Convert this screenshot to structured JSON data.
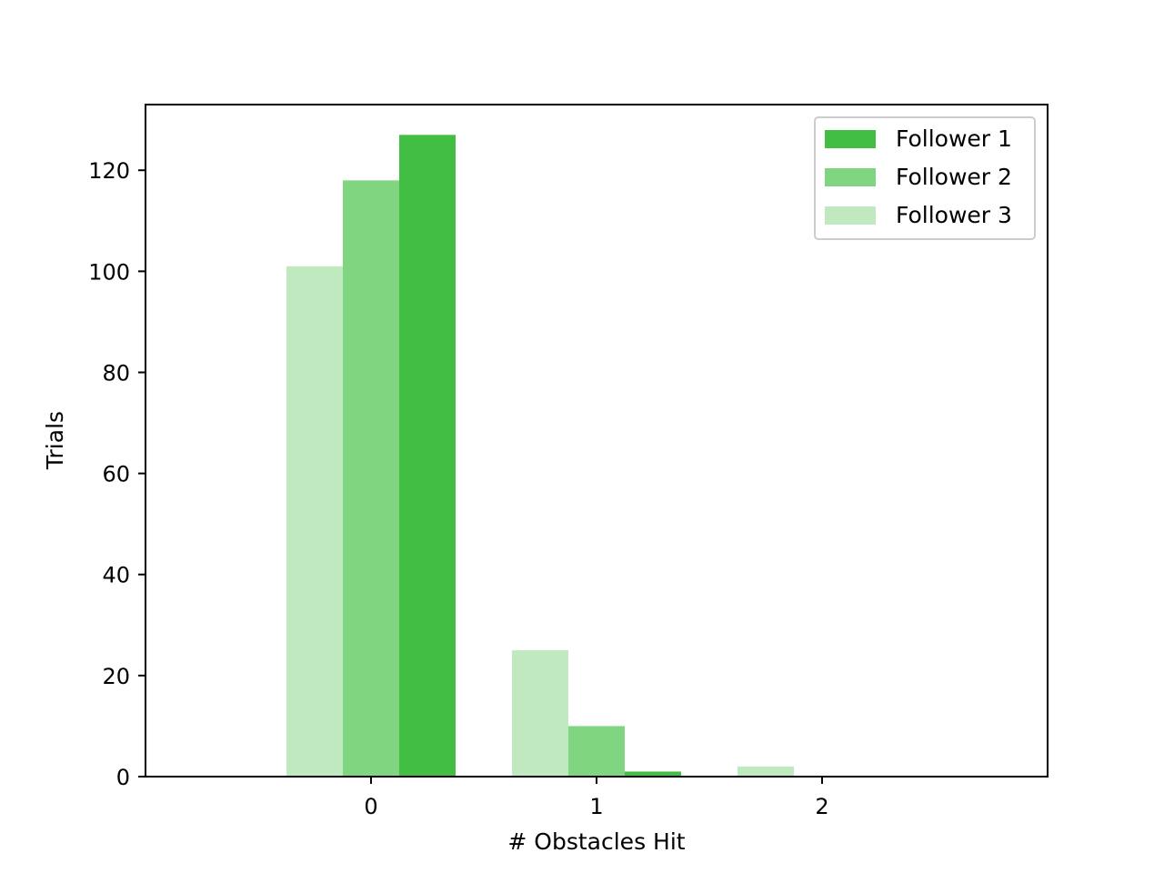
{
  "chart_data": {
    "type": "bar",
    "title": "",
    "xlabel": "# Obstacles Hit",
    "ylabel": "Trials",
    "categories": [
      "0",
      "1",
      "2"
    ],
    "x": [
      0,
      1,
      2
    ],
    "xlim": [
      -1,
      3
    ],
    "ylim": [
      0,
      133
    ],
    "yticks": [
      0,
      20,
      40,
      60,
      80,
      100,
      120
    ],
    "grid": false,
    "legend_position": "top-right",
    "series": [
      {
        "name": "Follower 1",
        "color": "#42bf42",
        "offset": 0.25,
        "values": [
          127,
          1,
          0
        ]
      },
      {
        "name": "Follower 2",
        "color": "#80d580",
        "offset": 0.0,
        "values": [
          118,
          10,
          0
        ]
      },
      {
        "name": "Follower 3",
        "color": "#c0e9c0",
        "offset": -0.25,
        "values": [
          101,
          25,
          2
        ]
      }
    ],
    "bar_width": 0.25
  }
}
